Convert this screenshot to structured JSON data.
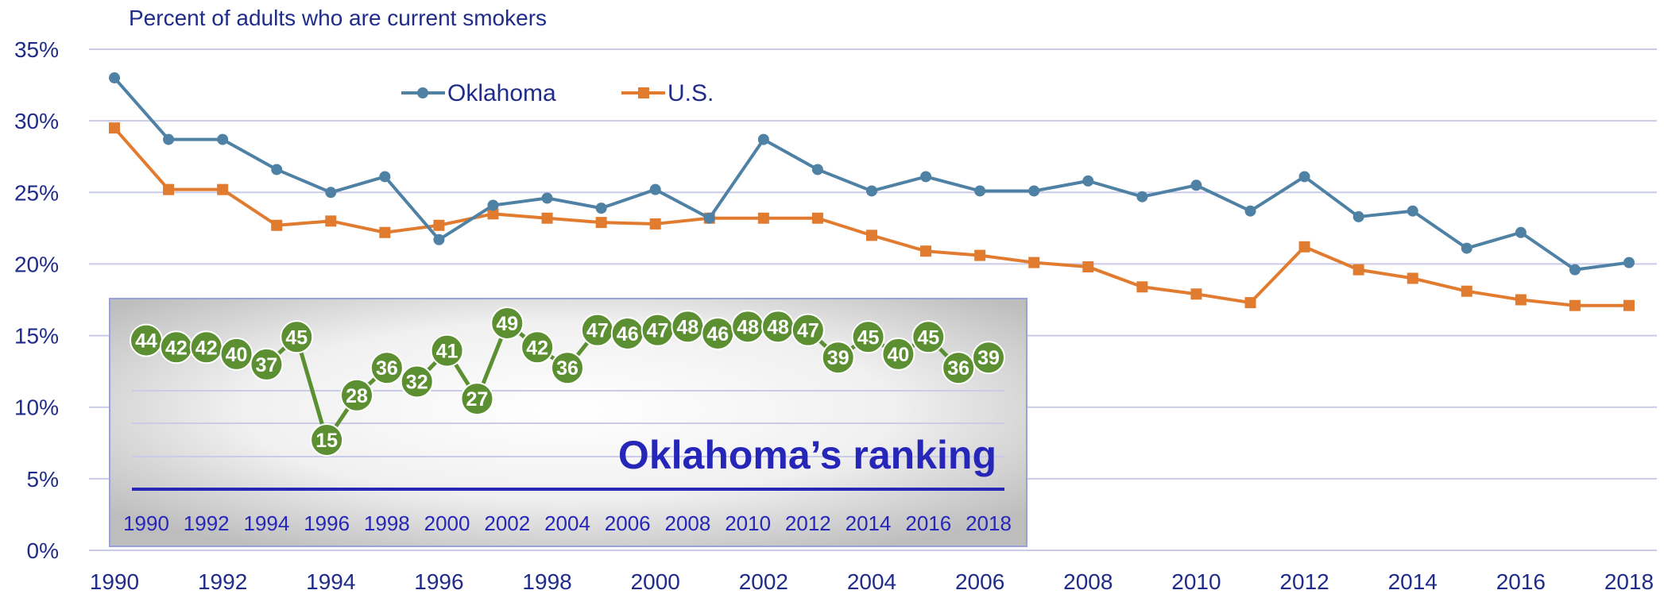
{
  "title": "Percent of adults who are current smokers",
  "colors": {
    "oklahoma": "#4e81a4",
    "us": "#e17b2f",
    "ranking": "#5c8f31",
    "axis_text": "#1f2c8a",
    "inset_title": "#2626b8",
    "grid": "#c9cbe8"
  },
  "chart_data": [
    {
      "type": "line",
      "title": "Percent of adults who are current smokers",
      "ylim": [
        0,
        35
      ],
      "y_ticks": [
        "0%",
        "5%",
        "10%",
        "15%",
        "20%",
        "25%",
        "30%",
        "35%"
      ],
      "x": [
        1990,
        1991,
        1992,
        1993,
        1994,
        1995,
        1996,
        1997,
        1998,
        1999,
        2000,
        2001,
        2002,
        2003,
        2004,
        2005,
        2006,
        2007,
        2008,
        2009,
        2010,
        2011,
        2012,
        2013,
        2014,
        2015,
        2016,
        2017,
        2018
      ],
      "x_tick_labels": [
        "1990",
        "1992",
        "1994",
        "1996",
        "1998",
        "2000",
        "2002",
        "2004",
        "2006",
        "2008",
        "2010",
        "2012",
        "2014",
        "2016",
        "2018"
      ],
      "grid": true,
      "legend_position": "top",
      "series": [
        {
          "name": "Oklahoma",
          "marker": "circle",
          "values": [
            33.0,
            28.7,
            28.7,
            26.6,
            25.0,
            26.1,
            21.7,
            24.1,
            24.6,
            23.9,
            25.2,
            23.2,
            28.7,
            26.6,
            25.1,
            26.1,
            25.1,
            25.1,
            25.8,
            24.7,
            25.5,
            23.7,
            26.1,
            23.3,
            23.7,
            21.1,
            22.2,
            19.6,
            20.1
          ]
        },
        {
          "name": "U.S.",
          "marker": "square",
          "values": [
            29.5,
            25.2,
            25.2,
            22.7,
            23.0,
            22.2,
            22.7,
            23.5,
            23.2,
            22.9,
            22.8,
            23.2,
            23.2,
            23.2,
            22.0,
            20.9,
            20.6,
            20.1,
            19.8,
            18.4,
            17.9,
            17.3,
            21.2,
            19.6,
            19.0,
            18.1,
            17.5,
            17.1,
            17.1
          ]
        }
      ]
    },
    {
      "type": "line",
      "title": "Oklahoma’s ranking",
      "x": [
        1990,
        1991,
        1992,
        1993,
        1994,
        1995,
        1996,
        1997,
        1998,
        1999,
        2000,
        2001,
        2002,
        2003,
        2004,
        2005,
        2006,
        2007,
        2008,
        2009,
        2010,
        2011,
        2012,
        2013,
        2014,
        2015,
        2016,
        2017,
        2018
      ],
      "x_tick_labels": [
        "1990",
        "1992",
        "1994",
        "1996",
        "1998",
        "2000",
        "2002",
        "2004",
        "2006",
        "2008",
        "2010",
        "2012",
        "2014",
        "2016",
        "2018"
      ],
      "series": [
        {
          "values": [
            44,
            42,
            42,
            40,
            37,
            45,
            15,
            28,
            36,
            32,
            41,
            27,
            49,
            42,
            36,
            47,
            46,
            47,
            48,
            46,
            48,
            48,
            47,
            39,
            45,
            40,
            45,
            36,
            39
          ]
        }
      ]
    }
  ]
}
